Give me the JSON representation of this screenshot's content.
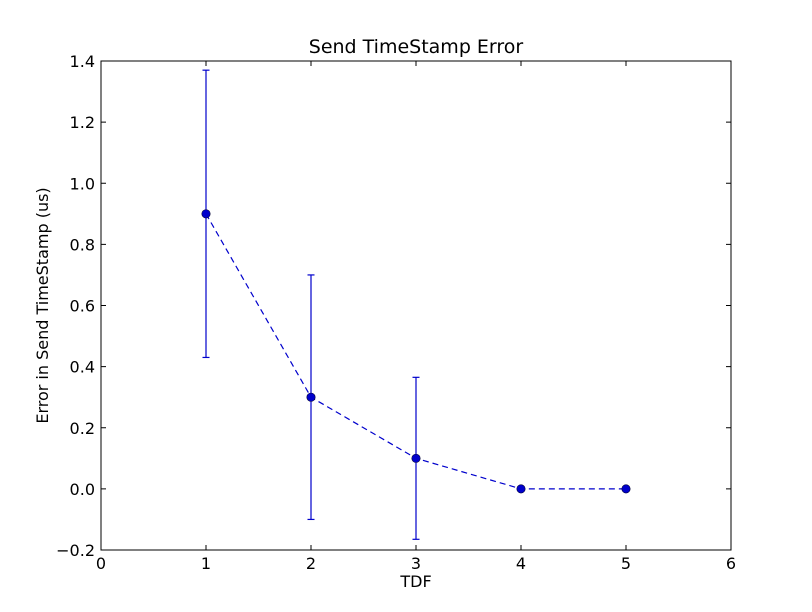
{
  "chart_data": {
    "type": "line",
    "title": "Send TimeStamp Error",
    "xlabel": "TDF",
    "ylabel": "Error in Send TimeStamp (us)",
    "xlim": [
      0,
      6
    ],
    "ylim": [
      -0.2,
      1.4
    ],
    "x_ticks": [
      0,
      1,
      2,
      3,
      4,
      5,
      6
    ],
    "y_ticks": [
      -0.2,
      0.0,
      0.2,
      0.4,
      0.6,
      0.8,
      1.0,
      1.2,
      1.4
    ],
    "x_tick_labels": [
      "0",
      "1",
      "2",
      "3",
      "4",
      "5",
      "6"
    ],
    "y_tick_labels": [
      "−0.2",
      "0.0",
      "0.2",
      "0.4",
      "0.6",
      "0.8",
      "1.0",
      "1.2",
      "1.4"
    ],
    "grid": false,
    "series": [
      {
        "x": [
          1,
          2,
          3,
          4,
          5
        ],
        "y": [
          0.9,
          0.3,
          0.1,
          0.0,
          0.0
        ],
        "err_low": [
          0.43,
          -0.1,
          -0.165,
          0.0,
          0.0
        ],
        "err_high": [
          1.37,
          0.7,
          0.365,
          0.0,
          0.0
        ],
        "line_style": "dashed",
        "marker": "circle",
        "color": "#0000cc"
      }
    ]
  }
}
